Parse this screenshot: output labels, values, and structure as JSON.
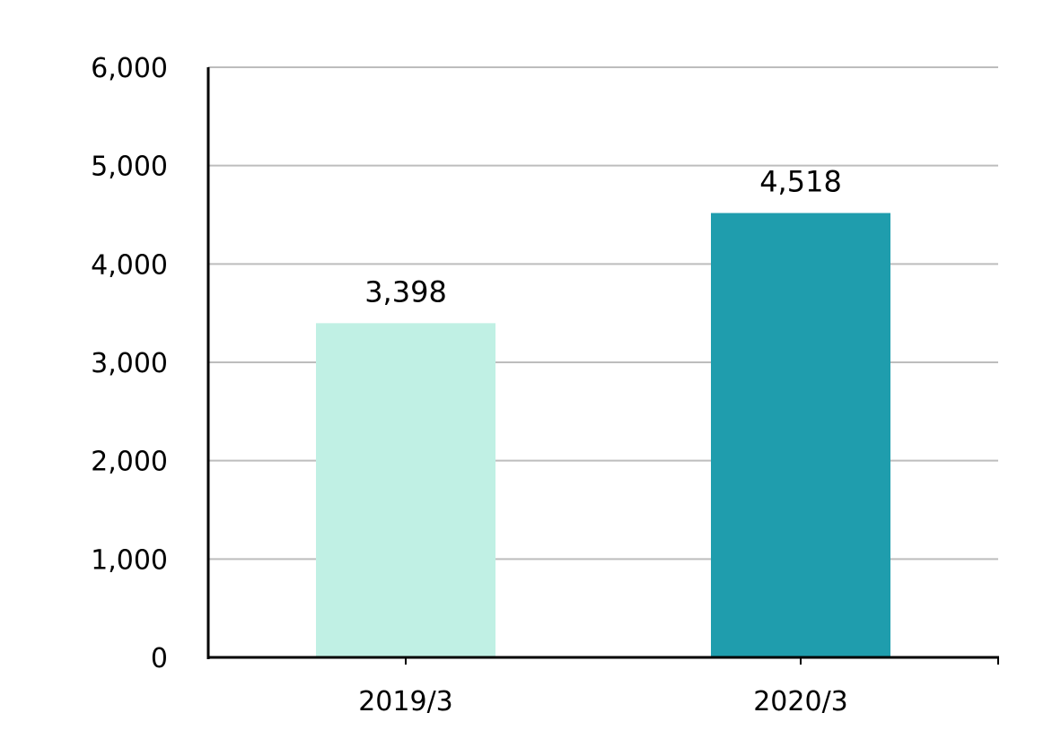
{
  "chart_data": {
    "type": "bar",
    "title": "",
    "xlabel": "",
    "ylabel": "",
    "categories": [
      "2019/3",
      "2020/3"
    ],
    "values": [
      3398,
      4518
    ],
    "value_labels": [
      "3,398",
      "4,518"
    ],
    "bar_colors": [
      "#c0f0e4",
      "#1f9dad"
    ],
    "ylim": [
      0,
      6000
    ],
    "yticks": [
      0,
      1000,
      2000,
      3000,
      4000,
      5000,
      6000
    ],
    "ytick_labels": [
      "0",
      "1,000",
      "2,000",
      "3,000",
      "4,000",
      "5,000",
      "6,000"
    ],
    "grid": true,
    "legend": "none"
  },
  "colors": {
    "grid": "#bdbdbd",
    "axis": "#000000"
  }
}
